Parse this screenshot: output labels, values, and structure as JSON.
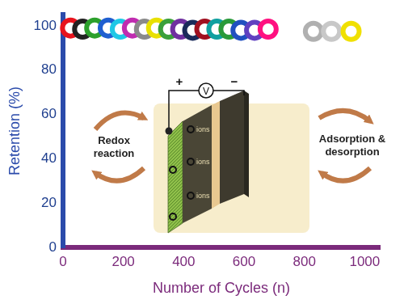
{
  "chart_data": {
    "type": "scatter",
    "x_label": "Number of Cycles (n)",
    "y_label": "Retention (%)",
    "x": [
      25,
      65,
      105,
      150,
      190,
      230,
      270,
      310,
      350,
      390,
      430,
      470,
      510,
      550,
      590,
      635,
      680,
      830,
      890,
      955
    ],
    "values": [
      99,
      98.5,
      99,
      99,
      98.5,
      99,
      98.5,
      99,
      98.5,
      98.5,
      98,
      98.5,
      98.5,
      98.5,
      98,
      98,
      98.5,
      97.5,
      97.5,
      97.5
    ],
    "colors": [
      "#e8141e",
      "#222222",
      "#2ca02c",
      "#1f5fd0",
      "#1ec8e6",
      "#c02cb0",
      "#8a8a8a",
      "#e8e000",
      "#3aa03a",
      "#7030a0",
      "#1a2a5a",
      "#a01020",
      "#10a0a0",
      "#2a9a3a",
      "#2050c0",
      "#6040c0",
      "#ff1080",
      "#b0b0b0",
      "#c8c8c8",
      "#f0e000"
    ],
    "marker": "donut",
    "xlim": [
      0,
      1050
    ],
    "xticks": [
      0,
      200,
      400,
      600,
      800,
      1000
    ],
    "ylim": [
      0,
      105
    ],
    "yticks": [
      0,
      20,
      40,
      60,
      80,
      100
    ],
    "grid": false
  },
  "inset": {
    "meter": "V",
    "positive": "+",
    "negative": "−",
    "ion_label": "ions",
    "left_arrow_label": "Redox reaction",
    "right_arrow_label": "Adsorption & desorption"
  }
}
